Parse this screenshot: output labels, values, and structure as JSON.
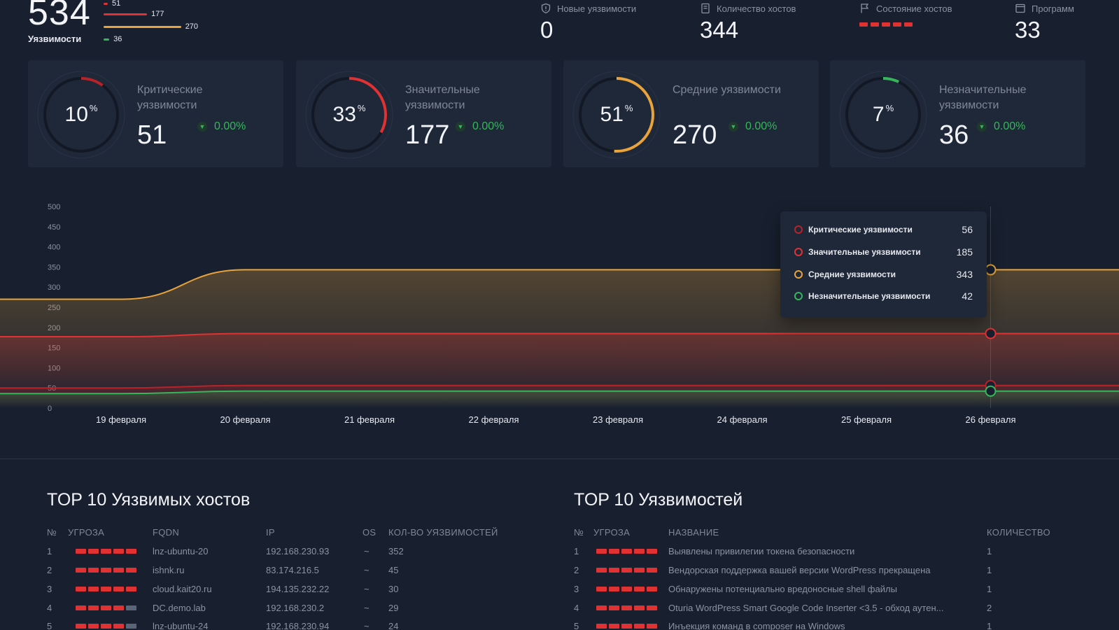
{
  "header": {
    "total": "534",
    "total_label": "Уязвимости",
    "mini_bars": [
      {
        "value": "51",
        "color": "#e03232",
        "fraction": 0.04
      },
      {
        "value": "177",
        "color": "#e03232",
        "fraction": 0.46
      },
      {
        "value": "270",
        "color": "#e8a33a",
        "fraction": 0.82
      },
      {
        "value": "36",
        "color": "#36b65b",
        "fraction": 0.06
      }
    ],
    "stats": [
      {
        "label": "Новые уязвимости",
        "value": "0",
        "icon": "shield-icon"
      },
      {
        "label": "Количество хостов",
        "value": "344",
        "icon": "server-icon"
      },
      {
        "label": "Состояние хостов",
        "value": "",
        "icon": "flag-icon"
      },
      {
        "label": "Программ",
        "value": "33",
        "icon": "window-icon"
      }
    ],
    "host_state_color": "#e03232"
  },
  "cards": [
    {
      "percent": "10",
      "percent_value": 10,
      "title": "Критические уязвимости",
      "count": "51",
      "delta": "0.00%",
      "color": "#b8232a"
    },
    {
      "percent": "33",
      "percent_value": 33,
      "title": "Значительные уязвимости",
      "count": "177",
      "delta": "0.00%",
      "color": "#e03232"
    },
    {
      "percent": "51",
      "percent_value": 51,
      "title": "Средние уязвимости",
      "count": "270",
      "delta": "0.00%",
      "color": "#e8a33a"
    },
    {
      "percent": "7",
      "percent_value": 7,
      "title": "Незначительные уязвимости",
      "count": "36",
      "delta": "0.00%",
      "color": "#36b65b"
    }
  ],
  "chart_data": {
    "type": "area",
    "x": [
      "19 февраля",
      "20 февраля",
      "21 февраля",
      "22 февраля",
      "23 февраля",
      "24 февраля",
      "25 февраля",
      "26 февраля"
    ],
    "y_ticks": [
      0,
      50,
      100,
      150,
      200,
      250,
      300,
      350,
      400,
      450,
      500
    ],
    "ylim": [
      0,
      500
    ],
    "grid": false,
    "series": [
      {
        "name": "Критические уязвимости",
        "color": "#b8232a",
        "values": [
          50,
          56,
          56,
          56,
          56,
          56,
          56,
          56
        ]
      },
      {
        "name": "Значительные уязвимости",
        "color": "#e03232",
        "values": [
          177,
          185,
          185,
          185,
          185,
          185,
          185,
          185
        ]
      },
      {
        "name": "Средние уязвимости",
        "color": "#e8a33a",
        "values": [
          270,
          343,
          343,
          343,
          343,
          343,
          343,
          343
        ]
      },
      {
        "name": "Незначительные уязвимости",
        "color": "#36b65b",
        "values": [
          36,
          42,
          42,
          42,
          42,
          42,
          42,
          42
        ]
      }
    ],
    "tooltip": [
      {
        "label": "Критические уязвимости",
        "value": "56",
        "color": "#b8232a"
      },
      {
        "label": "Значительные уязвимости",
        "value": "185",
        "color": "#e03232"
      },
      {
        "label": "Средние уязвимости",
        "value": "343",
        "color": "#e8a33a"
      },
      {
        "label": "Незначительные уязвимости",
        "value": "42",
        "color": "#36b65b"
      }
    ]
  },
  "hosts_table": {
    "title": "TOP 10 Уязвимых хостов",
    "columns": [
      "№",
      "УГРОЗА",
      "FQDN",
      "IP",
      "OS",
      "КОЛ-ВО УЯЗВИМОСТЕЙ"
    ],
    "rows": [
      {
        "n": "1",
        "threat": 5,
        "fqdn": "lnz-ubuntu-20",
        "ip": "192.168.230.93",
        "os": "~",
        "count": "352"
      },
      {
        "n": "2",
        "threat": 5,
        "fqdn": "ishnk.ru",
        "ip": "83.174.216.5",
        "os": "~",
        "count": "45"
      },
      {
        "n": "3",
        "threat": 5,
        "fqdn": "cloud.kait20.ru",
        "ip": "194.135.232.22",
        "os": "~",
        "count": "30"
      },
      {
        "n": "4",
        "threat": 4,
        "fqdn": "DC.demo.lab",
        "ip": "192.168.230.2",
        "os": "~",
        "count": "29"
      },
      {
        "n": "5",
        "threat": 4,
        "fqdn": "lnz-ubuntu-24",
        "ip": "192.168.230.94",
        "os": "~",
        "count": "24"
      }
    ]
  },
  "vulns_table": {
    "title": "TOP 10 Уязвимостей",
    "columns": [
      "№",
      "УГРОЗА",
      "НАЗВАНИЕ",
      "КОЛИЧЕСТВО"
    ],
    "rows": [
      {
        "n": "1",
        "threat": 5,
        "name": "Выявлены привилегии токена безопасности",
        "count": "1"
      },
      {
        "n": "2",
        "threat": 5,
        "name": "Вендорская поддержка вашей версии WordPress прекращена",
        "count": "1"
      },
      {
        "n": "3",
        "threat": 5,
        "name": "Обнаружены потенциально вредоносные shell файлы",
        "count": "1"
      },
      {
        "n": "4",
        "threat": 5,
        "name": "Oturia WordPress Smart Google Code Inserter <3.5 - обход аутен...",
        "count": "2"
      },
      {
        "n": "5",
        "threat": 5,
        "name": "Инъекция команд в composer на Windows",
        "count": "1"
      }
    ]
  }
}
